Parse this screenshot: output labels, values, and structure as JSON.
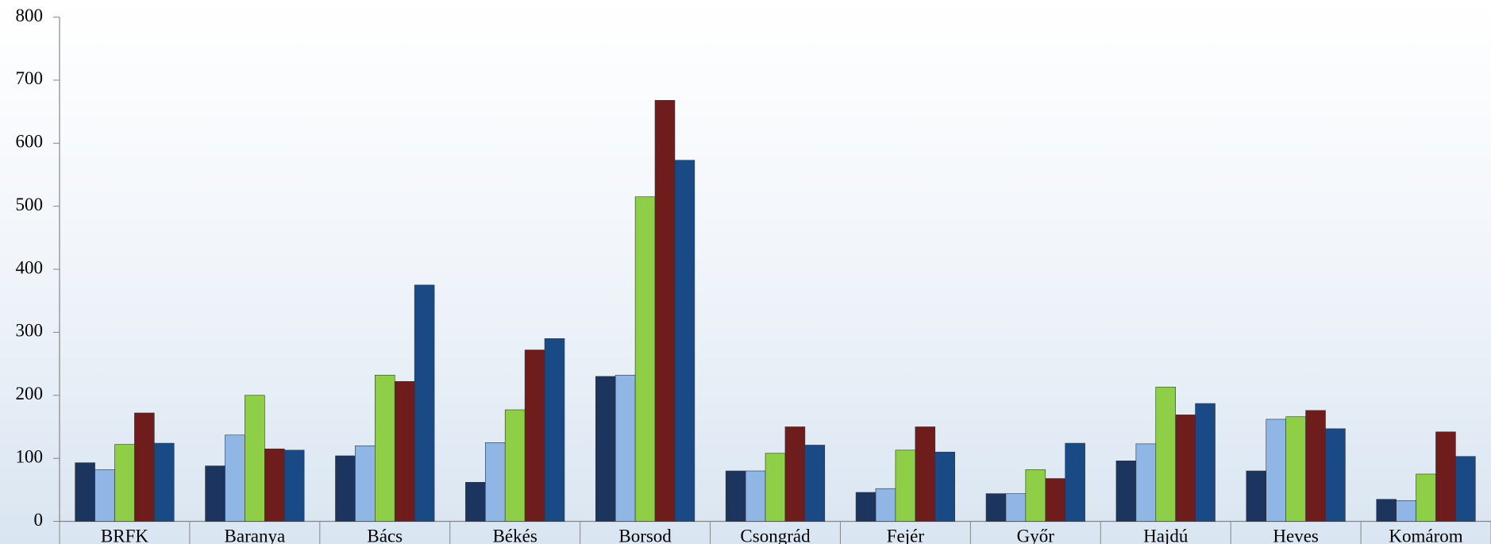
{
  "chart_data": {
    "type": "bar",
    "categories": [
      "BRFK",
      "Baranya",
      "Bács",
      "Békés",
      "Borsod",
      "Csongrád",
      "Fejér",
      "Győr",
      "Hajdú",
      "Heves",
      "Komárom"
    ],
    "series": [
      {
        "color": "#1b355e",
        "values": [
          93,
          88,
          104,
          62,
          230,
          80,
          46,
          44,
          96,
          80,
          35
        ]
      },
      {
        "color": "#8fb6e4",
        "values": [
          82,
          137,
          120,
          125,
          232,
          80,
          52,
          44,
          123,
          162,
          33
        ]
      },
      {
        "color": "#8fcf48",
        "values": [
          122,
          200,
          232,
          177,
          515,
          108,
          113,
          82,
          213,
          166,
          75
        ]
      },
      {
        "color": "#6e1c1c",
        "values": [
          172,
          115,
          222,
          272,
          668,
          150,
          150,
          68,
          169,
          176,
          142
        ]
      },
      {
        "color": "#1a4a86",
        "values": [
          124,
          113,
          375,
          290,
          573,
          121,
          110,
          124,
          187,
          147,
          103
        ]
      }
    ],
    "ylim": [
      0,
      800
    ],
    "yticks": [
      0,
      100,
      200,
      300,
      400,
      500,
      600,
      700,
      800
    ]
  }
}
